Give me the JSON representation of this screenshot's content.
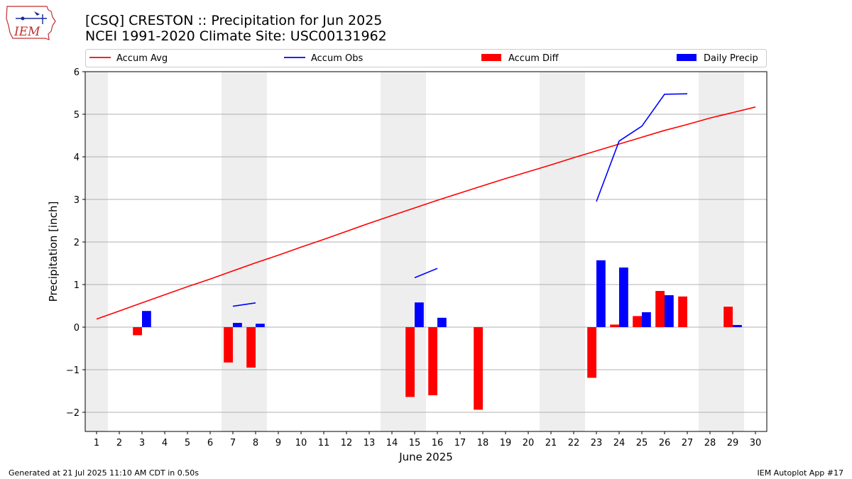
{
  "header": {
    "title_line1": "[CSQ] CRESTON :: Precipitation for Jun 2025",
    "title_line2": "NCEI 1991-2020 Climate Site: USC00131962",
    "logo_text": "IEM"
  },
  "footer": {
    "left": "Generated at 21 Jul 2025 11:10 AM CDT in 0.50s",
    "right": "IEM Autoplot App #17"
  },
  "colors": {
    "avg": "#ff0000",
    "obs": "#0000ff",
    "diff": "#ff0000",
    "daily": "#0000ff",
    "weekend_band": "#eeeeee",
    "grid": "#b0b0b0"
  },
  "chart_data": {
    "type": "bar",
    "xlabel": "June 2025",
    "ylabel": "Precipitation [inch]",
    "ylim": [
      -2.45,
      6.0
    ],
    "xlim": [
      0.5,
      30.5
    ],
    "grid": true,
    "legend_placement": "top, above plot",
    "legend": [
      {
        "label": "Accum Avg",
        "kind": "line",
        "color": "#ff0000"
      },
      {
        "label": "Accum Obs",
        "kind": "line",
        "color": "#0000ff"
      },
      {
        "label": "Accum Diff",
        "kind": "bar",
        "color": "#ff0000"
      },
      {
        "label": "Daily Precip",
        "kind": "bar",
        "color": "#0000ff"
      }
    ],
    "x_ticks": [
      1,
      2,
      3,
      4,
      5,
      6,
      7,
      8,
      9,
      10,
      11,
      12,
      13,
      14,
      15,
      16,
      17,
      18,
      19,
      20,
      21,
      22,
      23,
      24,
      25,
      26,
      27,
      28,
      29,
      30
    ],
    "y_ticks": [
      {
        "value": -2,
        "label": "−2"
      },
      {
        "value": -1,
        "label": "−1"
      },
      {
        "value": 0,
        "label": "0"
      },
      {
        "value": 1,
        "label": "1"
      },
      {
        "value": 2,
        "label": "2"
      },
      {
        "value": 3,
        "label": "3"
      },
      {
        "value": 4,
        "label": "4"
      },
      {
        "value": 5,
        "label": "5"
      },
      {
        "value": 6,
        "label": "6"
      }
    ],
    "weekend_bands": [
      [
        0.5,
        1.5
      ],
      [
        6.5,
        8.5
      ],
      [
        13.5,
        15.5
      ],
      [
        20.5,
        22.5
      ],
      [
        27.5,
        29.5
      ]
    ],
    "accum_avg": {
      "days": [
        1,
        2,
        3,
        4,
        5,
        6,
        7,
        8,
        9,
        10,
        11,
        12,
        13,
        14,
        15,
        16,
        17,
        18,
        19,
        20,
        21,
        22,
        23,
        24,
        25,
        26,
        27,
        28,
        29,
        30
      ],
      "values": [
        0.19,
        0.38,
        0.57,
        0.76,
        0.95,
        1.13,
        1.32,
        1.51,
        1.69,
        1.88,
        2.06,
        2.25,
        2.44,
        2.62,
        2.8,
        2.98,
        3.15,
        3.32,
        3.49,
        3.65,
        3.81,
        3.98,
        4.14,
        4.3,
        4.46,
        4.62,
        4.76,
        4.91,
        5.04,
        5.17
      ]
    },
    "accum_obs": [
      {
        "days": [
          7,
          8
        ],
        "values": [
          0.49,
          0.57
        ]
      },
      {
        "days": [
          15,
          16
        ],
        "values": [
          1.16,
          1.38
        ]
      },
      {
        "days": [
          23,
          24,
          25,
          26,
          27
        ],
        "values": [
          2.95,
          4.37,
          4.72,
          5.47,
          5.48
        ]
      }
    ],
    "accum_diff": [
      {
        "day": 3,
        "value": -0.19
      },
      {
        "day": 7,
        "value": -0.83
      },
      {
        "day": 8,
        "value": -0.95
      },
      {
        "day": 15,
        "value": -1.64
      },
      {
        "day": 16,
        "value": -1.6
      },
      {
        "day": 18,
        "value": -1.94
      },
      {
        "day": 23,
        "value": -1.19
      },
      {
        "day": 24,
        "value": 0.06
      },
      {
        "day": 25,
        "value": 0.26
      },
      {
        "day": 26,
        "value": 0.85
      },
      {
        "day": 27,
        "value": 0.72
      },
      {
        "day": 29,
        "value": 0.48
      }
    ],
    "daily_precip": [
      {
        "day": 3,
        "value": 0.38
      },
      {
        "day": 7,
        "value": 0.1
      },
      {
        "day": 8,
        "value": 0.08
      },
      {
        "day": 15,
        "value": 0.58
      },
      {
        "day": 16,
        "value": 0.22
      },
      {
        "day": 23,
        "value": 1.57
      },
      {
        "day": 24,
        "value": 1.4
      },
      {
        "day": 25,
        "value": 0.35
      },
      {
        "day": 26,
        "value": 0.75
      },
      {
        "day": 29,
        "value": 0.05
      }
    ]
  }
}
